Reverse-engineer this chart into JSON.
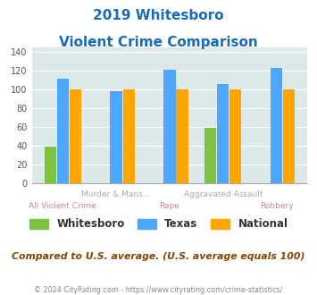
{
  "title_line1": "2019 Whitesboro",
  "title_line2": "Violent Crime Comparison",
  "categories": [
    "All Violent Crime",
    "Murder & Mans...",
    "Rape",
    "Aggravated Assault",
    "Robbery"
  ],
  "whitesboro": [
    39,
    null,
    null,
    59,
    null
  ],
  "texas": [
    111,
    98,
    121,
    106,
    123
  ],
  "national": [
    100,
    100,
    100,
    100,
    100
  ],
  "color_whitesboro": "#7dc242",
  "color_texas": "#4da6ff",
  "color_national": "#ffa500",
  "ylim": [
    0,
    145
  ],
  "yticks": [
    0,
    20,
    40,
    60,
    80,
    100,
    120,
    140
  ],
  "legend_labels": [
    "Whitesboro",
    "Texas",
    "National"
  ],
  "label_top": [
    "",
    "Murder & Mans...",
    "",
    "Aggravated Assault",
    ""
  ],
  "label_bottom": [
    "All Violent Crime",
    "",
    "Rape",
    "",
    "Robbery"
  ],
  "footnote": "Compared to U.S. average. (U.S. average equals 100)",
  "copyright": "© 2024 CityRating.com - https://www.cityrating.com/crime-statistics/",
  "bg_color": "#dde8e8",
  "title_color": "#1a6bb5",
  "label_top_color": "#aaaaaa",
  "label_bottom_color": "#cc8888",
  "footnote_color": "#884400",
  "copyright_color": "#888888"
}
